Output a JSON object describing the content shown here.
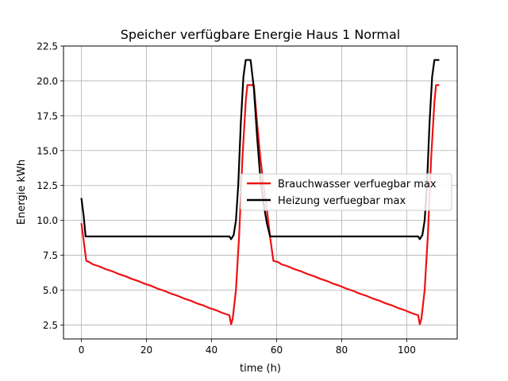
{
  "chart_data": {
    "type": "line",
    "title": "Speicher verfügbare Energie Haus 1 Normal",
    "xlabel": "time (h)",
    "ylabel": "Energie kWh",
    "xlim": [
      -5.5,
      115.5
    ],
    "ylim": [
      1.5,
      22.5
    ],
    "xticks": [
      0,
      20,
      40,
      60,
      80,
      100
    ],
    "yticks": [
      2.5,
      5.0,
      7.5,
      10.0,
      12.5,
      15.0,
      17.5,
      20.0,
      22.5
    ],
    "xtick_labels": [
      "0",
      "20",
      "40",
      "60",
      "80",
      "100"
    ],
    "ytick_labels": [
      "2.5",
      "5.0",
      "7.5",
      "10.0",
      "12.5",
      "15.0",
      "17.5",
      "20.0",
      "22.5"
    ],
    "grid": true,
    "legend_position": "center-right",
    "series": [
      {
        "name": "Brauchwasser verfuegbar max",
        "color": "#ee1111",
        "points": [
          [
            0,
            9.8
          ],
          [
            1.5,
            7.1
          ],
          [
            2.5,
            7.0
          ],
          [
            3.5,
            6.85
          ],
          [
            5.5,
            6.7
          ],
          [
            7.5,
            6.5
          ],
          [
            9.5,
            6.35
          ],
          [
            11.5,
            6.15
          ],
          [
            13.5,
            6.0
          ],
          [
            15.5,
            5.8
          ],
          [
            17.5,
            5.65
          ],
          [
            19.5,
            5.45
          ],
          [
            21.5,
            5.3
          ],
          [
            23.5,
            5.1
          ],
          [
            25.5,
            4.95
          ],
          [
            27.5,
            4.75
          ],
          [
            29.5,
            4.6
          ],
          [
            31.5,
            4.4
          ],
          [
            33.5,
            4.25
          ],
          [
            35.5,
            4.05
          ],
          [
            37.5,
            3.9
          ],
          [
            39.5,
            3.7
          ],
          [
            41.5,
            3.55
          ],
          [
            43.5,
            3.35
          ],
          [
            45.5,
            3.2
          ],
          [
            46,
            2.55
          ],
          [
            46.5,
            2.95
          ],
          [
            47.5,
            5.0
          ],
          [
            48.5,
            9.0
          ],
          [
            49.5,
            14.5
          ],
          [
            50.5,
            18.5
          ],
          [
            51,
            19.7
          ],
          [
            53,
            19.7
          ],
          [
            54,
            17.0
          ],
          [
            55,
            14.5
          ],
          [
            56,
            12.5
          ],
          [
            57,
            10.8
          ],
          [
            58,
            8.8
          ],
          [
            59,
            7.1
          ],
          [
            60.5,
            7.0
          ],
          [
            61.5,
            6.85
          ],
          [
            63.5,
            6.7
          ],
          [
            65.5,
            6.5
          ],
          [
            67.5,
            6.35
          ],
          [
            69.5,
            6.15
          ],
          [
            71.5,
            6.0
          ],
          [
            73.5,
            5.8
          ],
          [
            75.5,
            5.65
          ],
          [
            77.5,
            5.45
          ],
          [
            79.5,
            5.3
          ],
          [
            81.5,
            5.1
          ],
          [
            83.5,
            4.95
          ],
          [
            85.5,
            4.75
          ],
          [
            87.5,
            4.6
          ],
          [
            89.5,
            4.4
          ],
          [
            91.5,
            4.25
          ],
          [
            93.5,
            4.05
          ],
          [
            95.5,
            3.9
          ],
          [
            97.5,
            3.7
          ],
          [
            99.5,
            3.55
          ],
          [
            101.5,
            3.35
          ],
          [
            103.5,
            3.2
          ],
          [
            104,
            2.55
          ],
          [
            104.5,
            2.95
          ],
          [
            105.5,
            5.0
          ],
          [
            106.5,
            9.0
          ],
          [
            107.5,
            14.5
          ],
          [
            108.5,
            18.5
          ],
          [
            109,
            19.7
          ],
          [
            110,
            19.7
          ]
        ]
      },
      {
        "name": "Heizung verfuegbar max",
        "color": "#000000",
        "points": [
          [
            0,
            11.6
          ],
          [
            0.7,
            10.3
          ],
          [
            1.3,
            8.85
          ],
          [
            45.5,
            8.85
          ],
          [
            46,
            8.65
          ],
          [
            46.8,
            8.95
          ],
          [
            47.5,
            10.0
          ],
          [
            48.2,
            12.5
          ],
          [
            49,
            17.0
          ],
          [
            49.8,
            20.3
          ],
          [
            50.5,
            21.5
          ],
          [
            52,
            21.5
          ],
          [
            53,
            19.5
          ],
          [
            54,
            16.0
          ],
          [
            55,
            13.0
          ],
          [
            56,
            11.2
          ],
          [
            57,
            9.8
          ],
          [
            58,
            8.85
          ],
          [
            103.5,
            8.85
          ],
          [
            104,
            8.65
          ],
          [
            104.8,
            8.95
          ],
          [
            105.5,
            10.0
          ],
          [
            106.2,
            12.5
          ],
          [
            107,
            17.0
          ],
          [
            107.8,
            20.3
          ],
          [
            108.5,
            21.5
          ],
          [
            110,
            21.5
          ]
        ]
      }
    ]
  }
}
